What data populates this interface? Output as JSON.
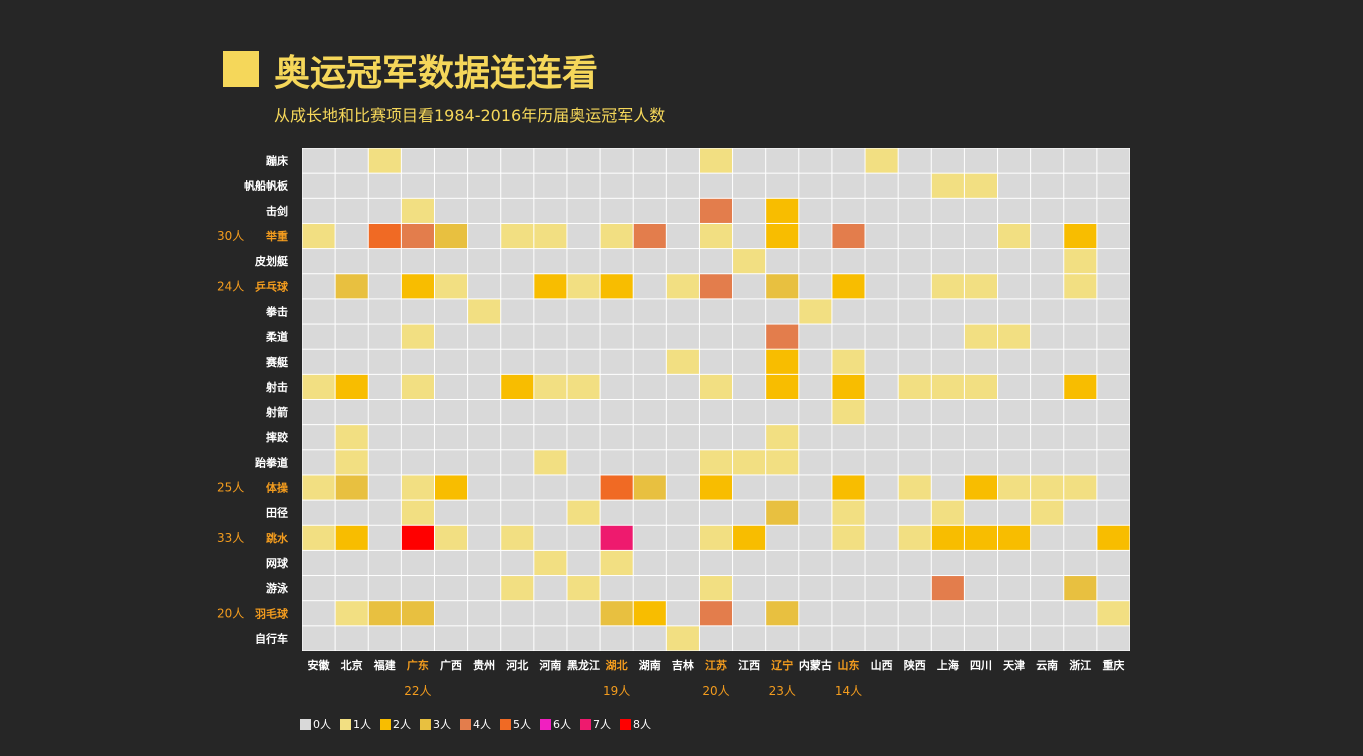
{
  "title": "奥运冠军数据连连看",
  "subtitle": "从成长地和比赛项目看1984-2016年历届奥运冠军人数",
  "colors": {
    "background": "#262626",
    "title": "#f5d75a",
    "highlight": "#f39c1e",
    "label": "#ffffff",
    "grid": "#ffffff",
    "level_colors": [
      "#d9d9d9",
      "#f2df82",
      "#f8bd00",
      "#e8c040",
      "#e37d4c",
      "#f06a24",
      "#f020c0",
      "#ee1a6e",
      "#ff0000"
    ]
  },
  "chart_data": {
    "type": "heatmap",
    "x": [
      "安徽",
      "北京",
      "福建",
      "广东",
      "广西",
      "贵州",
      "河北",
      "河南",
      "黑龙江",
      "湖北",
      "湖南",
      "吉林",
      "江苏",
      "江西",
      "辽宁",
      "内蒙古",
      "山东",
      "山西",
      "陕西",
      "上海",
      "四川",
      "天津",
      "云南",
      "浙江",
      "重庆"
    ],
    "y": [
      "蹦床",
      "帆船帆板",
      "击剑",
      "举重",
      "皮划艇",
      "乒乓球",
      "拳击",
      "柔道",
      "赛艇",
      "射击",
      "射箭",
      "摔跤",
      "跆拳道",
      "体操",
      "田径",
      "跳水",
      "网球",
      "游泳",
      "羽毛球",
      "自行车"
    ],
    "values": [
      [
        0,
        0,
        1,
        0,
        0,
        0,
        0,
        0,
        0,
        0,
        0,
        0,
        1,
        0,
        0,
        0,
        0,
        1,
        0,
        0,
        0,
        0,
        0,
        0,
        0
      ],
      [
        0,
        0,
        0,
        0,
        0,
        0,
        0,
        0,
        0,
        0,
        0,
        0,
        0,
        0,
        0,
        0,
        0,
        0,
        0,
        1,
        1,
        0,
        0,
        0,
        0
      ],
      [
        0,
        0,
        0,
        1,
        0,
        0,
        0,
        0,
        0,
        0,
        0,
        0,
        4,
        0,
        2,
        0,
        0,
        0,
        0,
        0,
        0,
        0,
        0,
        0,
        0
      ],
      [
        1,
        0,
        5,
        4,
        3,
        0,
        1,
        1,
        0,
        1,
        4,
        0,
        1,
        0,
        2,
        0,
        4,
        0,
        0,
        0,
        0,
        1,
        0,
        2,
        0
      ],
      [
        0,
        0,
        0,
        0,
        0,
        0,
        0,
        0,
        0,
        0,
        0,
        0,
        0,
        1,
        0,
        0,
        0,
        0,
        0,
        0,
        0,
        0,
        0,
        1,
        0
      ],
      [
        0,
        3,
        0,
        2,
        1,
        0,
        0,
        2,
        1,
        2,
        0,
        1,
        4,
        0,
        3,
        0,
        2,
        0,
        0,
        1,
        1,
        0,
        0,
        1,
        0
      ],
      [
        0,
        0,
        0,
        0,
        0,
        1,
        0,
        0,
        0,
        0,
        0,
        0,
        0,
        0,
        0,
        1,
        0,
        0,
        0,
        0,
        0,
        0,
        0,
        0,
        0
      ],
      [
        0,
        0,
        0,
        1,
        0,
        0,
        0,
        0,
        0,
        0,
        0,
        0,
        0,
        0,
        4,
        0,
        0,
        0,
        0,
        0,
        1,
        1,
        0,
        0,
        0
      ],
      [
        0,
        0,
        0,
        0,
        0,
        0,
        0,
        0,
        0,
        0,
        0,
        1,
        0,
        0,
        2,
        0,
        1,
        0,
        0,
        0,
        0,
        0,
        0,
        0,
        0
      ],
      [
        1,
        2,
        0,
        1,
        0,
        0,
        2,
        1,
        1,
        0,
        0,
        0,
        1,
        0,
        2,
        0,
        2,
        0,
        1,
        1,
        1,
        0,
        0,
        2,
        0
      ],
      [
        0,
        0,
        0,
        0,
        0,
        0,
        0,
        0,
        0,
        0,
        0,
        0,
        0,
        0,
        0,
        0,
        1,
        0,
        0,
        0,
        0,
        0,
        0,
        0,
        0
      ],
      [
        0,
        1,
        0,
        0,
        0,
        0,
        0,
        0,
        0,
        0,
        0,
        0,
        0,
        0,
        1,
        0,
        0,
        0,
        0,
        0,
        0,
        0,
        0,
        0,
        0
      ],
      [
        0,
        1,
        0,
        0,
        0,
        0,
        0,
        1,
        0,
        0,
        0,
        0,
        1,
        1,
        1,
        0,
        0,
        0,
        0,
        0,
        0,
        0,
        0,
        0,
        0
      ],
      [
        1,
        3,
        0,
        1,
        2,
        0,
        0,
        0,
        0,
        5,
        3,
        0,
        2,
        0,
        0,
        0,
        2,
        0,
        1,
        0,
        2,
        1,
        1,
        1,
        0
      ],
      [
        0,
        0,
        0,
        1,
        0,
        0,
        0,
        0,
        1,
        0,
        0,
        0,
        0,
        0,
        3,
        0,
        1,
        0,
        0,
        1,
        0,
        0,
        1,
        0,
        0
      ],
      [
        1,
        2,
        0,
        8,
        1,
        0,
        1,
        0,
        0,
        7,
        0,
        0,
        1,
        2,
        0,
        0,
        1,
        0,
        1,
        2,
        2,
        2,
        0,
        0,
        2
      ],
      [
        0,
        0,
        0,
        0,
        0,
        0,
        0,
        1,
        0,
        1,
        0,
        0,
        0,
        0,
        0,
        0,
        0,
        0,
        0,
        0,
        0,
        0,
        0,
        0,
        0
      ],
      [
        0,
        0,
        0,
        0,
        0,
        0,
        1,
        0,
        1,
        0,
        0,
        0,
        1,
        0,
        0,
        0,
        0,
        0,
        0,
        4,
        0,
        0,
        0,
        3,
        0
      ],
      [
        0,
        1,
        3,
        3,
        0,
        0,
        0,
        0,
        0,
        3,
        2,
        0,
        4,
        0,
        3,
        0,
        0,
        0,
        0,
        0,
        0,
        0,
        0,
        0,
        1
      ],
      [
        0,
        0,
        0,
        0,
        0,
        0,
        0,
        0,
        0,
        0,
        0,
        1,
        0,
        0,
        0,
        0,
        0,
        0,
        0,
        0,
        0,
        0,
        0,
        0,
        0
      ]
    ],
    "highlight_x": [
      "广东",
      "湖北",
      "江苏",
      "辽宁",
      "山东"
    ],
    "highlight_y": [
      "举重",
      "乒乓球",
      "体操",
      "跳水",
      "羽毛球"
    ],
    "x_totals": [
      {
        "label": "广东",
        "text": "22人"
      },
      {
        "label": "湖北",
        "text": "19人"
      },
      {
        "label": "江苏",
        "text": "20人"
      },
      {
        "label": "辽宁",
        "text": "23人"
      },
      {
        "label": "山东",
        "text": "14人"
      }
    ],
    "y_totals": [
      {
        "label": "举重",
        "text": "30人"
      },
      {
        "label": "乒乓球",
        "text": "24人"
      },
      {
        "label": "体操",
        "text": "25人"
      },
      {
        "label": "跳水",
        "text": "33人"
      },
      {
        "label": "羽毛球",
        "text": "20人"
      }
    ],
    "legend": [
      "0人",
      "1人",
      "2人",
      "3人",
      "4人",
      "5人",
      "6人",
      "7人",
      "8人"
    ]
  }
}
